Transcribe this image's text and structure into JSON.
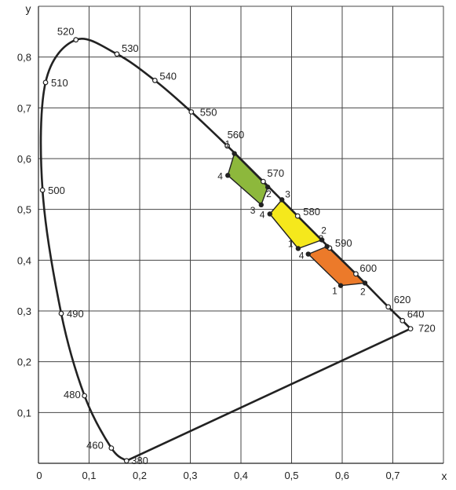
{
  "chart_data": {
    "type": "scatter",
    "xlabel": "x",
    "ylabel": "y",
    "xlim": [
      0,
      0.8
    ],
    "ylim": [
      0,
      0.9
    ],
    "grid": true,
    "x_ticks": [
      "0",
      "0,1",
      "0,2",
      "0,3",
      "0,4",
      "0,5",
      "0,6",
      "0,7"
    ],
    "y_ticks": [
      "0,1",
      "0,2",
      "0,3",
      "0,4",
      "0,5",
      "0,6",
      "0,7",
      "0,8"
    ],
    "locus": [
      {
        "label": "380",
        "x": 0.174,
        "y": 0.005
      },
      {
        "label": "460",
        "x": 0.144,
        "y": 0.03
      },
      {
        "label": "480",
        "x": 0.091,
        "y": 0.133
      },
      {
        "label": "490",
        "x": 0.045,
        "y": 0.295
      },
      {
        "label": "500",
        "x": 0.008,
        "y": 0.538
      },
      {
        "label": "510",
        "x": 0.014,
        "y": 0.75
      },
      {
        "label": "520",
        "x": 0.074,
        "y": 0.834
      },
      {
        "label": "530",
        "x": 0.155,
        "y": 0.806
      },
      {
        "label": "540",
        "x": 0.23,
        "y": 0.754
      },
      {
        "label": "550",
        "x": 0.302,
        "y": 0.692
      },
      {
        "label": "560",
        "x": 0.373,
        "y": 0.625
      },
      {
        "label": "570",
        "x": 0.444,
        "y": 0.555
      },
      {
        "label": "580",
        "x": 0.512,
        "y": 0.487
      },
      {
        "label": "590",
        "x": 0.575,
        "y": 0.424
      },
      {
        "label": "600",
        "x": 0.627,
        "y": 0.373
      },
      {
        "label": "620",
        "x": 0.691,
        "y": 0.308
      },
      {
        "label": "640",
        "x": 0.719,
        "y": 0.281
      },
      {
        "label": "720",
        "x": 0.735,
        "y": 0.265
      }
    ],
    "regions": [
      {
        "color": "#8db83c",
        "points": [
          {
            "label": "1",
            "x": 0.387,
            "y": 0.61
          },
          {
            "label": "2",
            "x": 0.453,
            "y": 0.544
          },
          {
            "label": "3",
            "x": 0.44,
            "y": 0.509
          },
          {
            "label": "4",
            "x": 0.374,
            "y": 0.567
          }
        ]
      },
      {
        "color": "#f5e81c",
        "points": [
          {
            "label": "3",
            "x": 0.481,
            "y": 0.519
          },
          {
            "label": "2",
            "x": 0.56,
            "y": 0.44
          },
          {
            "label": "1",
            "x": 0.513,
            "y": 0.423
          },
          {
            "label": "4",
            "x": 0.457,
            "y": 0.491
          }
        ]
      },
      {
        "color": "#ec7a2a",
        "points": [
          {
            "label": "3",
            "x": 0.57,
            "y": 0.427
          },
          {
            "label": "2",
            "x": 0.645,
            "y": 0.355
          },
          {
            "label": "1",
            "x": 0.597,
            "y": 0.35
          },
          {
            "label": "4",
            "x": 0.533,
            "y": 0.412
          }
        ]
      }
    ]
  }
}
